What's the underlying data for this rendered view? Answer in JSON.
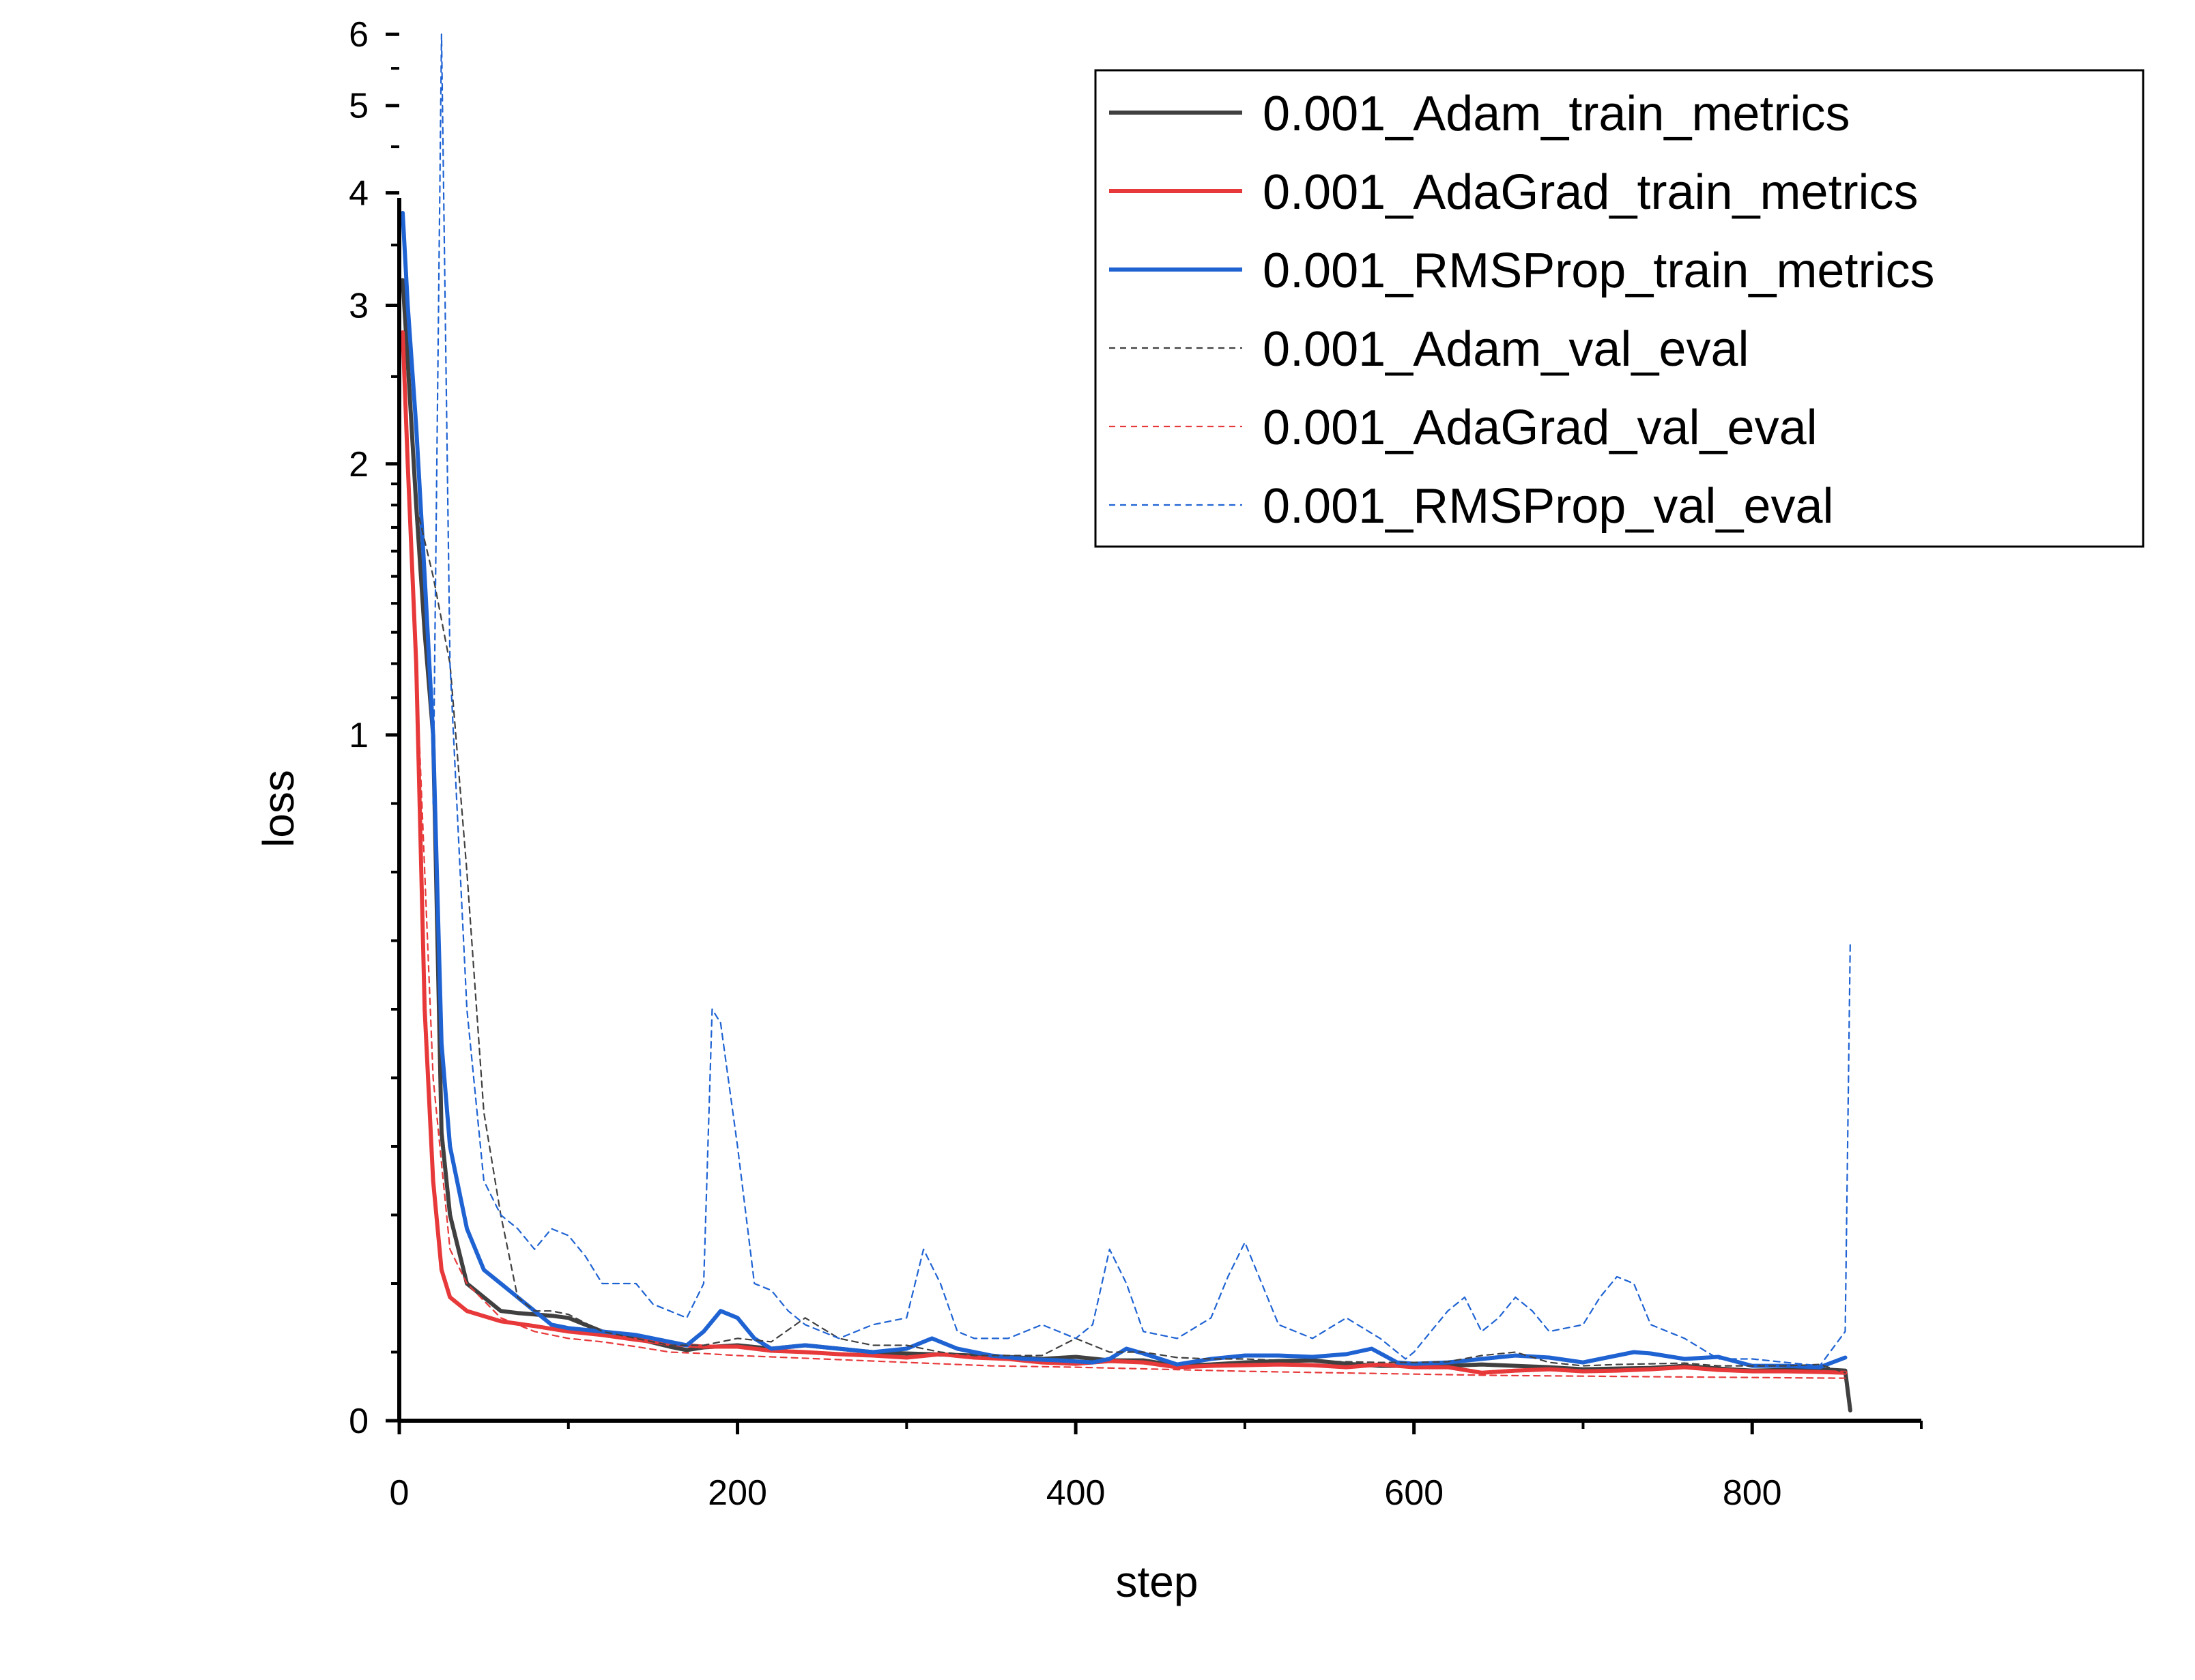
{
  "chart_data": {
    "type": "line",
    "title": "",
    "xlabel": "step",
    "ylabel": "loss",
    "xlim": [
      0,
      900
    ],
    "ylim": [
      0,
      6
    ],
    "y_scale": "nonlinear (compressed below 1, log-like above 1)",
    "x_ticks": [
      0,
      200,
      400,
      600,
      800
    ],
    "y_ticks": [
      0,
      1,
      2,
      3,
      4,
      5,
      6
    ],
    "grid": false,
    "legend_position": "top-right",
    "series": [
      {
        "name": "0.001_Adam_train_metrics",
        "style": "solid",
        "color": "#404040",
        "points": [
          [
            2,
            3.2
          ],
          [
            5,
            2.6
          ],
          [
            10,
            1.8
          ],
          [
            15,
            1.3
          ],
          [
            20,
            1.0
          ],
          [
            25,
            0.42
          ],
          [
            30,
            0.3
          ],
          [
            40,
            0.2
          ],
          [
            50,
            0.18
          ],
          [
            60,
            0.16
          ],
          [
            70,
            0.157
          ],
          [
            80,
            0.155
          ],
          [
            90,
            0.153
          ],
          [
            100,
            0.15
          ],
          [
            120,
            0.13
          ],
          [
            140,
            0.12
          ],
          [
            160,
            0.108
          ],
          [
            170,
            0.103
          ],
          [
            180,
            0.107
          ],
          [
            200,
            0.11
          ],
          [
            220,
            0.105
          ],
          [
            240,
            0.11
          ],
          [
            260,
            0.105
          ],
          [
            280,
            0.1
          ],
          [
            300,
            0.098
          ],
          [
            340,
            0.095
          ],
          [
            360,
            0.093
          ],
          [
            380,
            0.09
          ],
          [
            400,
            0.093
          ],
          [
            420,
            0.088
          ],
          [
            440,
            0.088
          ],
          [
            460,
            0.08
          ],
          [
            480,
            0.082
          ],
          [
            500,
            0.085
          ],
          [
            520,
            0.087
          ],
          [
            540,
            0.088
          ],
          [
            560,
            0.083
          ],
          [
            580,
            0.08
          ],
          [
            600,
            0.08
          ],
          [
            620,
            0.08
          ],
          [
            640,
            0.082
          ],
          [
            660,
            0.08
          ],
          [
            680,
            0.078
          ],
          [
            700,
            0.075
          ],
          [
            720,
            0.076
          ],
          [
            740,
            0.077
          ],
          [
            760,
            0.08
          ],
          [
            780,
            0.076
          ],
          [
            800,
            0.073
          ],
          [
            820,
            0.074
          ],
          [
            840,
            0.075
          ],
          [
            855,
            0.073
          ],
          [
            858,
            0.015
          ]
        ]
      },
      {
        "name": "0.001_AdaGrad_train_metrics",
        "style": "solid",
        "color": "#e8393a",
        "points": [
          [
            2,
            2.8
          ],
          [
            5,
            2.0
          ],
          [
            10,
            1.2
          ],
          [
            15,
            0.6
          ],
          [
            20,
            0.35
          ],
          [
            25,
            0.22
          ],
          [
            30,
            0.18
          ],
          [
            40,
            0.16
          ],
          [
            60,
            0.145
          ],
          [
            80,
            0.138
          ],
          [
            100,
            0.13
          ],
          [
            120,
            0.125
          ],
          [
            140,
            0.118
          ],
          [
            160,
            0.112
          ],
          [
            180,
            0.108
          ],
          [
            200,
            0.108
          ],
          [
            220,
            0.102
          ],
          [
            240,
            0.1
          ],
          [
            260,
            0.097
          ],
          [
            280,
            0.095
          ],
          [
            300,
            0.092
          ],
          [
            320,
            0.097
          ],
          [
            340,
            0.092
          ],
          [
            360,
            0.09
          ],
          [
            380,
            0.085
          ],
          [
            400,
            0.083
          ],
          [
            420,
            0.087
          ],
          [
            440,
            0.085
          ],
          [
            460,
            0.078
          ],
          [
            480,
            0.08
          ],
          [
            500,
            0.081
          ],
          [
            520,
            0.082
          ],
          [
            540,
            0.081
          ],
          [
            560,
            0.078
          ],
          [
            580,
            0.082
          ],
          [
            600,
            0.078
          ],
          [
            620,
            0.078
          ],
          [
            640,
            0.07
          ],
          [
            660,
            0.073
          ],
          [
            680,
            0.075
          ],
          [
            700,
            0.072
          ],
          [
            720,
            0.073
          ],
          [
            740,
            0.075
          ],
          [
            760,
            0.078
          ],
          [
            780,
            0.074
          ],
          [
            800,
            0.072
          ],
          [
            820,
            0.072
          ],
          [
            840,
            0.071
          ],
          [
            855,
            0.07
          ]
        ]
      },
      {
        "name": "0.001_RMSProp_train_metrics",
        "style": "solid",
        "color": "#1f63d3",
        "points": [
          [
            2,
            3.8
          ],
          [
            5,
            3.0
          ],
          [
            10,
            2.2
          ],
          [
            15,
            1.5
          ],
          [
            20,
            1.0
          ],
          [
            25,
            0.55
          ],
          [
            30,
            0.4
          ],
          [
            40,
            0.28
          ],
          [
            50,
            0.22
          ],
          [
            60,
            0.2
          ],
          [
            70,
            0.18
          ],
          [
            80,
            0.16
          ],
          [
            90,
            0.14
          ],
          [
            100,
            0.135
          ],
          [
            120,
            0.13
          ],
          [
            140,
            0.125
          ],
          [
            160,
            0.115
          ],
          [
            170,
            0.11
          ],
          [
            180,
            0.13
          ],
          [
            190,
            0.16
          ],
          [
            200,
            0.15
          ],
          [
            210,
            0.12
          ],
          [
            220,
            0.105
          ],
          [
            240,
            0.11
          ],
          [
            260,
            0.105
          ],
          [
            280,
            0.1
          ],
          [
            300,
            0.105
          ],
          [
            315,
            0.12
          ],
          [
            330,
            0.105
          ],
          [
            350,
            0.095
          ],
          [
            370,
            0.09
          ],
          [
            390,
            0.088
          ],
          [
            410,
            0.085
          ],
          [
            420,
            0.09
          ],
          [
            430,
            0.105
          ],
          [
            440,
            0.098
          ],
          [
            460,
            0.082
          ],
          [
            480,
            0.09
          ],
          [
            500,
            0.095
          ],
          [
            520,
            0.095
          ],
          [
            540,
            0.093
          ],
          [
            560,
            0.097
          ],
          [
            575,
            0.105
          ],
          [
            590,
            0.085
          ],
          [
            600,
            0.083
          ],
          [
            620,
            0.085
          ],
          [
            640,
            0.09
          ],
          [
            660,
            0.095
          ],
          [
            680,
            0.092
          ],
          [
            700,
            0.085
          ],
          [
            720,
            0.095
          ],
          [
            730,
            0.1
          ],
          [
            740,
            0.098
          ],
          [
            760,
            0.09
          ],
          [
            780,
            0.093
          ],
          [
            800,
            0.08
          ],
          [
            820,
            0.08
          ],
          [
            840,
            0.078
          ],
          [
            855,
            0.092
          ]
        ]
      },
      {
        "name": "0.001_Adam_val_eval",
        "style": "dashed",
        "color": "#404040",
        "points": [
          [
            5,
            2.5
          ],
          [
            10,
            1.8
          ],
          [
            20,
            1.5
          ],
          [
            30,
            1.2
          ],
          [
            40,
            0.8
          ],
          [
            50,
            0.45
          ],
          [
            60,
            0.3
          ],
          [
            70,
            0.18
          ],
          [
            80,
            0.16
          ],
          [
            90,
            0.16
          ],
          [
            100,
            0.155
          ],
          [
            120,
            0.13
          ],
          [
            140,
            0.12
          ],
          [
            160,
            0.11
          ],
          [
            180,
            0.11
          ],
          [
            200,
            0.12
          ],
          [
            220,
            0.115
          ],
          [
            240,
            0.15
          ],
          [
            260,
            0.12
          ],
          [
            280,
            0.11
          ],
          [
            300,
            0.11
          ],
          [
            320,
            0.1
          ],
          [
            340,
            0.095
          ],
          [
            360,
            0.095
          ],
          [
            380,
            0.095
          ],
          [
            400,
            0.12
          ],
          [
            420,
            0.1
          ],
          [
            440,
            0.1
          ],
          [
            460,
            0.092
          ],
          [
            480,
            0.09
          ],
          [
            500,
            0.09
          ],
          [
            520,
            0.088
          ],
          [
            540,
            0.087
          ],
          [
            560,
            0.086
          ],
          [
            580,
            0.085
          ],
          [
            600,
            0.085
          ],
          [
            620,
            0.086
          ],
          [
            640,
            0.095
          ],
          [
            660,
            0.1
          ],
          [
            680,
            0.085
          ],
          [
            700,
            0.08
          ],
          [
            720,
            0.082
          ],
          [
            740,
            0.083
          ],
          [
            760,
            0.084
          ],
          [
            780,
            0.08
          ],
          [
            800,
            0.08
          ],
          [
            820,
            0.08
          ],
          [
            840,
            0.082
          ],
          [
            855,
            0.07
          ]
        ]
      },
      {
        "name": "0.001_AdaGrad_val_eval",
        "style": "dashed",
        "color": "#e8393a",
        "points": [
          [
            5,
            2.0
          ],
          [
            10,
            1.2
          ],
          [
            20,
            0.5
          ],
          [
            30,
            0.25
          ],
          [
            40,
            0.2
          ],
          [
            60,
            0.15
          ],
          [
            80,
            0.13
          ],
          [
            100,
            0.12
          ],
          [
            120,
            0.115
          ],
          [
            140,
            0.108
          ],
          [
            160,
            0.1
          ],
          [
            180,
            0.098
          ],
          [
            200,
            0.095
          ],
          [
            250,
            0.09
          ],
          [
            300,
            0.085
          ],
          [
            350,
            0.08
          ],
          [
            400,
            0.078
          ],
          [
            450,
            0.075
          ],
          [
            500,
            0.072
          ],
          [
            550,
            0.07
          ],
          [
            600,
            0.068
          ],
          [
            650,
            0.066
          ],
          [
            700,
            0.065
          ],
          [
            750,
            0.064
          ],
          [
            800,
            0.063
          ],
          [
            855,
            0.062
          ]
        ]
      },
      {
        "name": "0.001_RMSProp_val_eval",
        "style": "dashed",
        "color": "#1f63d3",
        "points": [
          [
            20,
            0.9
          ],
          [
            25,
            6.0
          ],
          [
            30,
            1.2
          ],
          [
            40,
            0.6
          ],
          [
            50,
            0.35
          ],
          [
            60,
            0.3
          ],
          [
            70,
            0.28
          ],
          [
            80,
            0.25
          ],
          [
            90,
            0.28
          ],
          [
            100,
            0.27
          ],
          [
            110,
            0.24
          ],
          [
            120,
            0.2
          ],
          [
            140,
            0.2
          ],
          [
            150,
            0.17
          ],
          [
            160,
            0.16
          ],
          [
            170,
            0.15
          ],
          [
            180,
            0.2
          ],
          [
            185,
            0.6
          ],
          [
            190,
            0.58
          ],
          [
            200,
            0.4
          ],
          [
            210,
            0.2
          ],
          [
            220,
            0.19
          ],
          [
            230,
            0.16
          ],
          [
            240,
            0.14
          ],
          [
            260,
            0.12
          ],
          [
            280,
            0.14
          ],
          [
            300,
            0.15
          ],
          [
            310,
            0.25
          ],
          [
            320,
            0.2
          ],
          [
            330,
            0.13
          ],
          [
            340,
            0.12
          ],
          [
            360,
            0.12
          ],
          [
            380,
            0.14
          ],
          [
            400,
            0.12
          ],
          [
            410,
            0.14
          ],
          [
            420,
            0.25
          ],
          [
            430,
            0.2
          ],
          [
            440,
            0.13
          ],
          [
            460,
            0.12
          ],
          [
            480,
            0.15
          ],
          [
            490,
            0.21
          ],
          [
            500,
            0.26
          ],
          [
            510,
            0.2
          ],
          [
            520,
            0.14
          ],
          [
            540,
            0.12
          ],
          [
            560,
            0.15
          ],
          [
            580,
            0.12
          ],
          [
            595,
            0.09
          ],
          [
            600,
            0.1
          ],
          [
            620,
            0.16
          ],
          [
            630,
            0.18
          ],
          [
            640,
            0.13
          ],
          [
            650,
            0.15
          ],
          [
            660,
            0.18
          ],
          [
            670,
            0.16
          ],
          [
            680,
            0.13
          ],
          [
            700,
            0.14
          ],
          [
            710,
            0.18
          ],
          [
            720,
            0.21
          ],
          [
            730,
            0.2
          ],
          [
            740,
            0.14
          ],
          [
            760,
            0.12
          ],
          [
            780,
            0.09
          ],
          [
            800,
            0.09
          ],
          [
            820,
            0.085
          ],
          [
            840,
            0.08
          ],
          [
            855,
            0.13
          ],
          [
            858,
            0.7
          ]
        ]
      }
    ]
  }
}
